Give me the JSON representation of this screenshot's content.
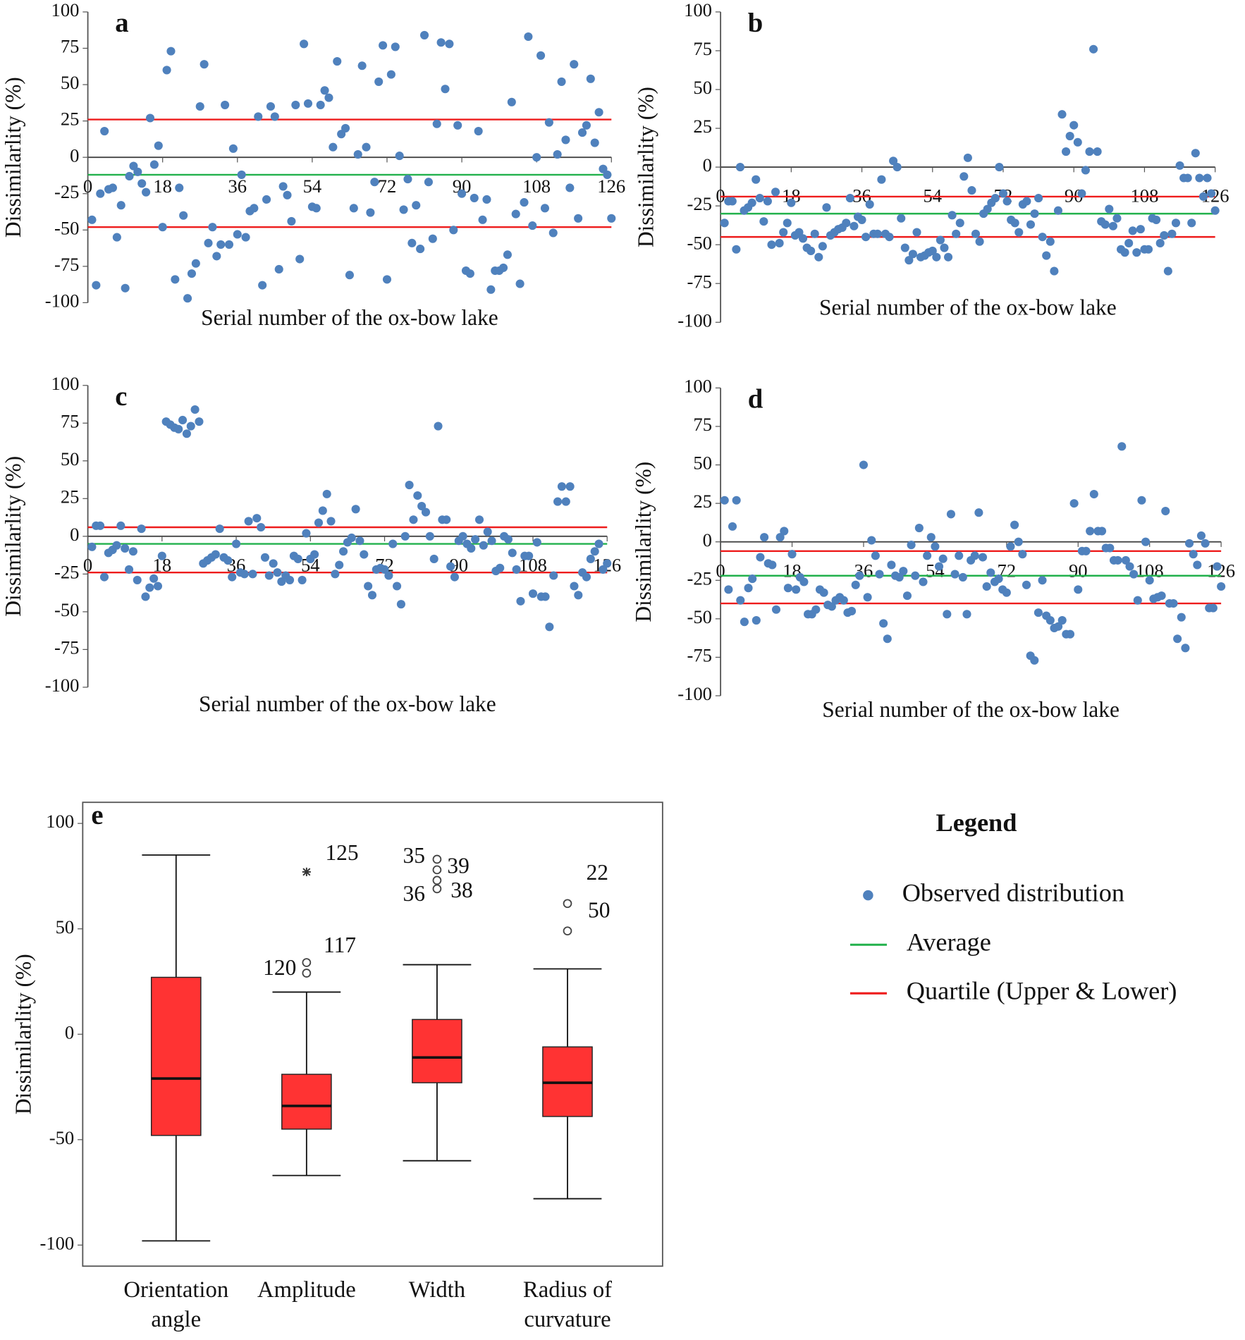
{
  "chart_data": [
    {
      "type": "scatter",
      "label": "a",
      "xlabel": "Serial number of the ox-bow lake",
      "ylabel": "Dissimilarlity (%)",
      "xlim": [
        0,
        126
      ],
      "ylim": [
        -100,
        100
      ],
      "xticks": [
        0,
        18,
        36,
        54,
        72,
        90,
        108,
        126
      ],
      "yticks": [
        -100,
        -75,
        -50,
        -25,
        0,
        25,
        50,
        75,
        100
      ],
      "x": [
        1,
        2,
        3,
        4,
        5,
        6,
        7,
        8,
        9,
        10,
        11,
        12,
        13,
        14,
        15,
        16,
        17,
        18,
        19,
        20,
        21,
        22,
        23,
        24,
        25,
        26,
        27,
        28,
        29,
        30,
        31,
        32,
        33,
        34,
        35,
        36,
        37,
        38,
        39,
        40,
        41,
        42,
        43,
        44,
        45,
        46,
        47,
        48,
        49,
        50,
        51,
        52,
        53,
        54,
        55,
        56,
        57,
        58,
        59,
        60,
        61,
        62,
        63,
        64,
        65,
        66,
        67,
        68,
        69,
        70,
        71,
        72,
        73,
        74,
        75,
        76,
        77,
        78,
        79,
        80,
        81,
        82,
        83,
        84,
        85,
        86,
        87,
        88,
        89,
        90,
        91,
        92,
        93,
        94,
        95,
        96,
        97,
        98,
        99,
        100,
        101,
        102,
        103,
        104,
        105,
        106,
        107,
        108,
        109,
        110,
        111,
        112,
        113,
        114,
        115,
        116,
        117,
        118,
        119,
        120,
        121,
        122,
        123,
        124,
        125,
        126
      ],
      "values": [
        -43,
        -88,
        -25,
        18,
        -22,
        -21,
        -55,
        -33,
        -90,
        -13,
        -6,
        -10,
        -18,
        -24,
        27,
        -5,
        8,
        -48,
        60,
        73,
        -84,
        -21,
        -40,
        -97,
        -80,
        -73,
        35,
        64,
        -59,
        -48,
        -68,
        -60,
        36,
        -60,
        6,
        -53,
        -12,
        -55,
        -37,
        -35,
        28,
        -88,
        -29,
        35,
        28,
        -77,
        -20,
        -26,
        -44,
        36,
        -70,
        78,
        37,
        -34,
        -35,
        36,
        46,
        41,
        7,
        66,
        16,
        20,
        -81,
        -35,
        2,
        63,
        7,
        -38,
        -17,
        52,
        77,
        -84,
        57,
        76,
        1,
        -36,
        -15,
        -59,
        -33,
        -63,
        84,
        -17,
        -56,
        23,
        79,
        47,
        78,
        -50,
        22,
        -25,
        -78,
        -80,
        -28,
        18,
        -43,
        -29,
        -91,
        -78,
        -78,
        -76,
        -67,
        38,
        -39,
        -87,
        -31,
        83,
        -47,
        0,
        70,
        -35,
        24,
        -52,
        2,
        52,
        12,
        -21,
        64,
        -42,
        17,
        22,
        54,
        10,
        31,
        -8,
        -12,
        -42
      ],
      "average": -12,
      "quartiles": [
        26,
        -48
      ]
    },
    {
      "type": "scatter",
      "label": "b",
      "xlabel": "Serial number of the ox-bow lake",
      "ylabel": "Dissimilarlity (%)",
      "xlim": [
        0,
        126
      ],
      "ylim": [
        -100,
        100
      ],
      "xticks": [
        0,
        18,
        36,
        54,
        72,
        90,
        108,
        126
      ],
      "yticks": [
        -100,
        -75,
        -50,
        -25,
        0,
        25,
        50,
        75,
        100
      ],
      "x": [
        1,
        2,
        3,
        4,
        5,
        6,
        7,
        8,
        9,
        10,
        11,
        12,
        13,
        14,
        15,
        16,
        17,
        18,
        19,
        20,
        21,
        22,
        23,
        24,
        25,
        26,
        27,
        28,
        29,
        30,
        31,
        32,
        33,
        34,
        35,
        36,
        37,
        38,
        39,
        40,
        41,
        42,
        43,
        44,
        45,
        46,
        47,
        48,
        49,
        50,
        51,
        52,
        53,
        54,
        55,
        56,
        57,
        58,
        59,
        60,
        61,
        62,
        63,
        64,
        65,
        66,
        67,
        68,
        69,
        70,
        71,
        72,
        73,
        74,
        75,
        76,
        77,
        78,
        79,
        80,
        81,
        82,
        83,
        84,
        85,
        86,
        87,
        88,
        89,
        90,
        91,
        92,
        93,
        94,
        95,
        96,
        97,
        98,
        99,
        100,
        101,
        102,
        103,
        104,
        105,
        106,
        107,
        108,
        109,
        110,
        111,
        112,
        113,
        114,
        115,
        116,
        117,
        118,
        119,
        120,
        121,
        122,
        123,
        124,
        125,
        126
      ],
      "values": [
        -36,
        -22,
        -22,
        -53,
        0,
        -28,
        -26,
        -23,
        -8,
        -20,
        -35,
        -22,
        -50,
        -16,
        -49,
        -42,
        -36,
        -23,
        -44,
        -42,
        -46,
        -52,
        -54,
        -43,
        -58,
        -51,
        -26,
        -44,
        -42,
        -40,
        -39,
        -36,
        -20,
        -38,
        -32,
        -34,
        -45,
        -24,
        -43,
        -43,
        -8,
        -43,
        -45,
        4,
        0,
        -33,
        -52,
        -60,
        -56,
        -42,
        -58,
        -57,
        -55,
        -54,
        -58,
        -47,
        -52,
        -58,
        -31,
        -43,
        -36,
        -6,
        6,
        -15,
        -43,
        -48,
        -30,
        -27,
        -23,
        -20,
        0,
        -17,
        -22,
        -34,
        -36,
        -42,
        -24,
        -22,
        -37,
        -30,
        -20,
        -45,
        -57,
        -48,
        -67,
        -28,
        34,
        10,
        20,
        27,
        16,
        -17,
        -2,
        10,
        76,
        10,
        -35,
        -37,
        -27,
        -38,
        -33,
        -53,
        -55,
        -49,
        -41,
        -55,
        -40,
        -53,
        -53,
        -33,
        -34,
        -49,
        -44,
        -67,
        -43,
        -36,
        1,
        -7,
        -7,
        -36,
        9,
        -7,
        -19,
        -7,
        -17,
        -28
      ],
      "average": -30,
      "quartiles": [
        -19,
        -45
      ]
    },
    {
      "type": "scatter",
      "label": "c",
      "xlabel": "Serial number of the ox-bow lake",
      "ylabel": "Dissimilarlity (%)",
      "xlim": [
        0,
        126
      ],
      "ylim": [
        -100,
        100
      ],
      "xticks": [
        0,
        18,
        36,
        54,
        72,
        90,
        108,
        126
      ],
      "yticks": [
        -100,
        -75,
        -50,
        -25,
        0,
        25,
        50,
        75,
        100
      ],
      "x": [
        1,
        2,
        3,
        4,
        5,
        6,
        7,
        8,
        9,
        10,
        11,
        12,
        13,
        14,
        15,
        16,
        17,
        18,
        19,
        20,
        21,
        22,
        23,
        24,
        25,
        26,
        27,
        28,
        29,
        30,
        31,
        32,
        33,
        34,
        35,
        36,
        37,
        38,
        39,
        40,
        41,
        42,
        43,
        44,
        45,
        46,
        47,
        48,
        49,
        50,
        51,
        52,
        53,
        54,
        55,
        56,
        57,
        58,
        59,
        60,
        61,
        62,
        63,
        64,
        65,
        66,
        67,
        68,
        69,
        70,
        71,
        72,
        73,
        74,
        75,
        76,
        77,
        78,
        79,
        80,
        81,
        82,
        83,
        84,
        85,
        86,
        87,
        88,
        89,
        90,
        91,
        92,
        93,
        94,
        95,
        96,
        97,
        98,
        99,
        100,
        101,
        102,
        103,
        104,
        105,
        106,
        107,
        108,
        109,
        110,
        111,
        112,
        113,
        114,
        115,
        116,
        117,
        118,
        119,
        120,
        121,
        122,
        123,
        124,
        125,
        126
      ],
      "values": [
        -7,
        7,
        7,
        -27,
        -11,
        -9,
        -6,
        7,
        -8,
        -22,
        -10,
        -29,
        5,
        -40,
        -34,
        -28,
        -33,
        -13,
        76,
        74,
        72,
        71,
        77,
        68,
        73,
        84,
        76,
        -18,
        -16,
        -14,
        -12,
        5,
        -14,
        -16,
        -27,
        -5,
        -24,
        -25,
        10,
        -25,
        12,
        6,
        -14,
        -26,
        -18,
        -24,
        -30,
        -26,
        -29,
        -13,
        -15,
        -29,
        2,
        -15,
        -12,
        9,
        17,
        28,
        10,
        -25,
        -19,
        -10,
        -4,
        -1,
        18,
        -3,
        -12,
        -33,
        -39,
        -22,
        -21,
        -22,
        -26,
        -5,
        -33,
        -45,
        0,
        34,
        11,
        27,
        20,
        16,
        0,
        -15,
        73,
        11,
        11,
        -20,
        -27,
        -3,
        0,
        -5,
        -8,
        -2,
        11,
        -6,
        3,
        -3,
        -23,
        -21,
        0,
        -2,
        -11,
        -22,
        -43,
        -13,
        -13,
        -38,
        -4,
        -40,
        -40,
        -60,
        -26,
        23,
        33,
        23,
        33,
        -33,
        -39,
        -24,
        -27,
        -15,
        -10,
        -5,
        -22,
        -18
      ],
      "average": -5,
      "quartiles": [
        6,
        -24
      ]
    },
    {
      "type": "scatter",
      "label": "d",
      "xlabel": "Serial number of the ox-bow lake",
      "ylabel": "Dissimilarlity (%)",
      "xlim": [
        0,
        126
      ],
      "ylim": [
        -100,
        100
      ],
      "xticks": [
        0,
        18,
        36,
        54,
        72,
        90,
        108,
        126
      ],
      "yticks": [
        -100,
        -75,
        -50,
        -25,
        0,
        25,
        50,
        75,
        100
      ],
      "x": [
        1,
        2,
        3,
        4,
        5,
        6,
        7,
        8,
        9,
        10,
        11,
        12,
        13,
        14,
        15,
        16,
        17,
        18,
        19,
        20,
        21,
        22,
        23,
        24,
        25,
        26,
        27,
        28,
        29,
        30,
        31,
        32,
        33,
        34,
        35,
        36,
        37,
        38,
        39,
        40,
        41,
        42,
        43,
        44,
        45,
        46,
        47,
        48,
        49,
        50,
        51,
        52,
        53,
        54,
        55,
        56,
        57,
        58,
        59,
        60,
        61,
        62,
        63,
        64,
        65,
        66,
        67,
        68,
        69,
        70,
        71,
        72,
        73,
        74,
        75,
        76,
        77,
        78,
        79,
        80,
        81,
        82,
        83,
        84,
        85,
        86,
        87,
        88,
        89,
        90,
        91,
        92,
        93,
        94,
        95,
        96,
        97,
        98,
        99,
        100,
        101,
        102,
        103,
        104,
        105,
        106,
        107,
        108,
        109,
        110,
        111,
        112,
        113,
        114,
        115,
        116,
        117,
        118,
        119,
        120,
        121,
        122,
        123,
        124,
        125,
        126
      ],
      "values": [
        27,
        -31,
        10,
        27,
        -38,
        -52,
        -30,
        -24,
        -51,
        -10,
        3,
        -14,
        -15,
        -44,
        3,
        7,
        -30,
        -8,
        -31,
        -23,
        -26,
        -47,
        -47,
        -44,
        -31,
        -33,
        -41,
        -42,
        -38,
        -36,
        -38,
        -46,
        -45,
        -28,
        -22,
        50,
        -36,
        1,
        -9,
        -21,
        -53,
        -63,
        -15,
        -22,
        -23,
        -19,
        -35,
        -2,
        -22,
        9,
        -26,
        -9,
        3,
        -3,
        -16,
        -11,
        -47,
        18,
        -21,
        -9,
        -23,
        -47,
        -12,
        -9,
        19,
        -10,
        -29,
        -20,
        -26,
        -24,
        -31,
        -33,
        -3,
        11,
        0,
        -8,
        -28,
        -74,
        -77,
        -46,
        -25,
        -48,
        -51,
        -56,
        -55,
        -51,
        -60,
        -60,
        25,
        -31,
        -6,
        -6,
        7,
        31,
        7,
        7,
        -4,
        -4,
        -12,
        -12,
        62,
        -12,
        -16,
        -21,
        -38,
        27,
        0,
        -25,
        -37,
        -36,
        -35,
        20,
        -40,
        -40,
        -63,
        -49,
        -69,
        -1,
        -8,
        -15,
        4,
        -1,
        -43,
        -43,
        -16,
        -29
      ],
      "average": -22,
      "quartiles": [
        -6,
        -40
      ]
    },
    {
      "type": "box",
      "label": "e",
      "ylabel": "Dissimilarlity (%)",
      "categories": [
        "Orientation angle",
        "Amplitude",
        "Width",
        "Radius of curvature"
      ],
      "ylim": [
        -110,
        110
      ],
      "yticks": [
        -100,
        -50,
        0,
        50,
        100
      ],
      "color": "#ff3333",
      "boxes": [
        {
          "min": -98,
          "q1": -48,
          "median": -21,
          "q3": 27,
          "max": 85,
          "outliers": []
        },
        {
          "min": -67,
          "q1": -45,
          "median": -34,
          "q3": -19,
          "max": 20,
          "outliers": [
            {
              "label": "125",
              "value": 77,
              "marker": "star"
            },
            {
              "label": "117",
              "value": 34,
              "marker": "circle"
            },
            {
              "label": "120",
              "value": 29,
              "marker": "circle"
            }
          ]
        },
        {
          "min": -60,
          "q1": -23,
          "median": -11,
          "q3": 7,
          "max": 33,
          "outliers": [
            {
              "label": "35",
              "value": 83,
              "marker": "circle"
            },
            {
              "label": "39",
              "value": 78,
              "marker": "circle"
            },
            {
              "label": "38",
              "value": 73,
              "marker": "circle"
            },
            {
              "label": "36",
              "value": 69,
              "marker": "circle"
            }
          ]
        },
        {
          "min": -78,
          "q1": -39,
          "median": -23,
          "q3": -6,
          "max": 31,
          "outliers": [
            {
              "label": "22",
              "value": 62,
              "marker": "circle"
            },
            {
              "label": "50",
              "value": 49,
              "marker": "circle"
            }
          ]
        }
      ]
    }
  ],
  "legend": {
    "title": "Legend",
    "entries": [
      {
        "name": "Observed distribution",
        "color": "#4f81bd",
        "marker": "dot"
      },
      {
        "name": "Average",
        "color": "#22b14c",
        "marker": "line"
      },
      {
        "name": "Quartile (Upper & Lower)",
        "color": "#ee1c1c",
        "marker": "line"
      }
    ]
  }
}
